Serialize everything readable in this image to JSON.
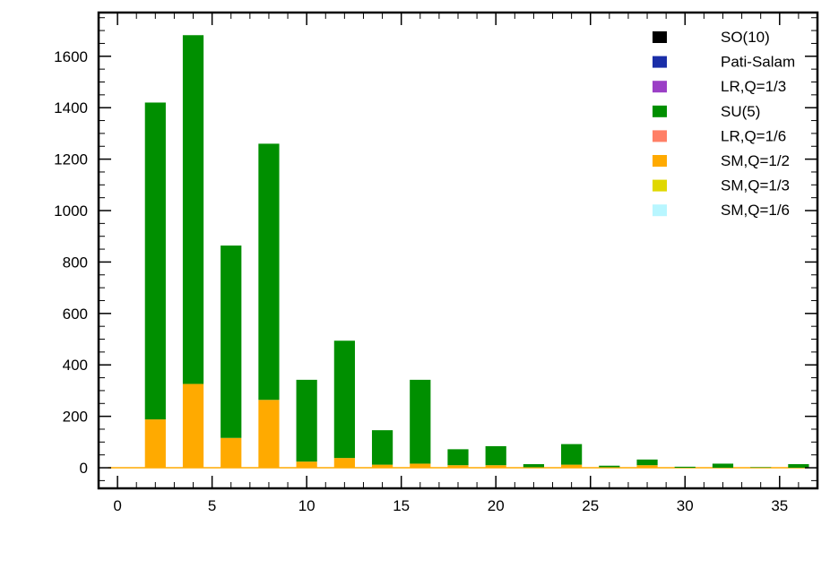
{
  "chart_data": {
    "type": "bar",
    "stacked": true,
    "title": "",
    "xlabel": "",
    "ylabel": "",
    "xlim": [
      -1,
      37
    ],
    "ylim": [
      -80,
      1770
    ],
    "xticks": [
      0,
      5,
      10,
      15,
      20,
      25,
      30,
      35
    ],
    "yticks": [
      0,
      200,
      400,
      600,
      800,
      1000,
      1200,
      1400,
      1600
    ],
    "grid": false,
    "legend_position": "top-right",
    "x": [
      2,
      4,
      6,
      8,
      10,
      12,
      14,
      16,
      18,
      20,
      22,
      24,
      26,
      28,
      30,
      32,
      34,
      36
    ],
    "series": [
      {
        "name": "SO(10)",
        "color": "#000000",
        "values": [
          0,
          0,
          0,
          0,
          0,
          0,
          0,
          0,
          0,
          0,
          0,
          0,
          0,
          0,
          0,
          0,
          0,
          0
        ]
      },
      {
        "name": "Pati-Salam",
        "color": "#1a2ea8",
        "values": [
          0,
          0,
          0,
          0,
          0,
          0,
          0,
          0,
          0,
          0,
          0,
          0,
          0,
          0,
          0,
          0,
          0,
          0
        ]
      },
      {
        "name": "LR,Q=1/3",
        "color": "#9b3fc6",
        "values": [
          0,
          0,
          0,
          0,
          0,
          0,
          0,
          0,
          0,
          0,
          0,
          0,
          0,
          0,
          0,
          0,
          0,
          0
        ]
      },
      {
        "name": "SU(5)",
        "color": "#008f00",
        "values": [
          1232,
          1356,
          748,
          996,
          318,
          456,
          134,
          326,
          62,
          74,
          12,
          80,
          6,
          22,
          4,
          16,
          2,
          14
        ]
      },
      {
        "name": "LR,Q=1/6",
        "color": "#ff7f66",
        "values": [
          0,
          0,
          0,
          0,
          0,
          0,
          0,
          0,
          0,
          0,
          0,
          0,
          0,
          0,
          0,
          0,
          0,
          0
        ]
      },
      {
        "name": "SM,Q=1/2",
        "color": "#ffaa00",
        "values": [
          188,
          326,
          116,
          264,
          24,
          38,
          12,
          16,
          10,
          10,
          2,
          12,
          2,
          10,
          0,
          0,
          0,
          0
        ]
      },
      {
        "name": "SM,Q=1/3",
        "color": "#e0d800",
        "values": [
          0,
          0,
          0,
          0,
          0,
          0,
          0,
          0,
          0,
          0,
          0,
          0,
          0,
          0,
          0,
          0,
          0,
          0
        ]
      },
      {
        "name": "SM,Q=1/6",
        "color": "#b8f6ff",
        "values": [
          0,
          0,
          0,
          0,
          0,
          0,
          0,
          0,
          0,
          0,
          0,
          0,
          0,
          0,
          0,
          0,
          0,
          0
        ]
      }
    ],
    "stack_order": [
      "SM,Q=1/2",
      "SU(5)"
    ]
  }
}
